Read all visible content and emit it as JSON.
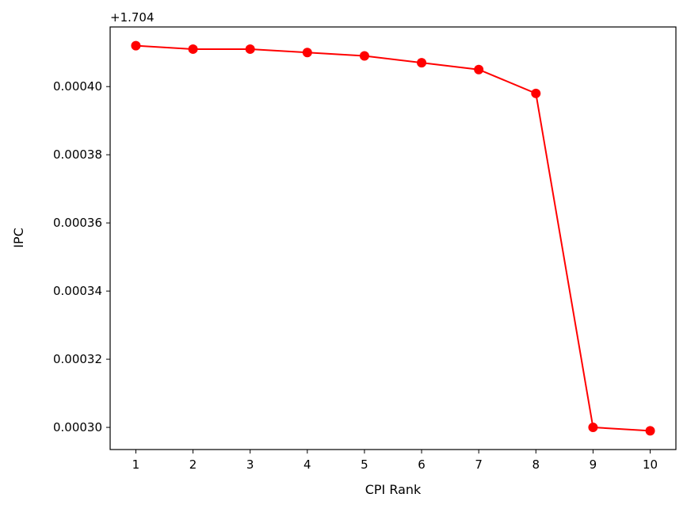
{
  "chart_data": {
    "type": "line",
    "xlabel": "CPI Rank",
    "ylabel": "IPC",
    "offset_label": "+1.704",
    "x": [
      1,
      2,
      3,
      4,
      5,
      6,
      7,
      8,
      9,
      10
    ],
    "xticks": [
      "1",
      "2",
      "3",
      "4",
      "5",
      "6",
      "7",
      "8",
      "9",
      "10"
    ],
    "series": [
      {
        "values": [
          0.000412,
          0.000411,
          0.000411,
          0.00041,
          0.000409,
          0.000407,
          0.000405,
          0.000398,
          0.0003,
          0.000299
        ],
        "color": "#ff0000"
      }
    ],
    "yticks": [
      0.0003,
      0.00032,
      0.00034,
      0.00036,
      0.00038,
      0.0004
    ],
    "ytick_labels": [
      "0.00030",
      "0.00032",
      "0.00034",
      "0.00036",
      "0.00038",
      "0.00040"
    ],
    "xlim": [
      0.55,
      10.45
    ],
    "ylim": [
      0.0002935,
      0.0004175
    ],
    "grid": false
  }
}
